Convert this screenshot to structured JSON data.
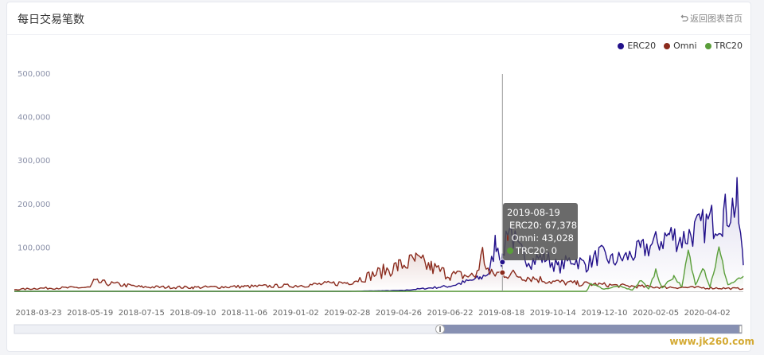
{
  "header": {
    "title": "每日交易笔数",
    "back_label": "返回图表首页"
  },
  "legend": [
    {
      "name": "ERC20",
      "color": "#22108a"
    },
    {
      "name": "Omni",
      "color": "#8b2b1d"
    },
    {
      "name": "TRC20",
      "color": "#5a9e3a"
    }
  ],
  "tooltip": {
    "date": "2019-08-19",
    "rows": [
      {
        "label": "ERC20: 67,378",
        "color": "#22108a"
      },
      {
        "label": "Omni: 43,028",
        "color": "#8b2b1d"
      },
      {
        "label": "TRC20: 0",
        "color": "#5a9e3a"
      }
    ]
  },
  "watermark": "www.jk260.com",
  "chart_data": {
    "type": "line",
    "title": "每日交易笔数",
    "yticks": [
      "100,000",
      "200,000",
      "300,000",
      "400,000",
      "500,000"
    ],
    "xtick_labels": [
      "2018-03-23",
      "2018-05-19",
      "2018-07-15",
      "2018-09-10",
      "2018-11-06",
      "2019-01-02",
      "2019-02-28",
      "2019-04-26",
      "2019-06-22",
      "2019-08-18",
      "2019-10-14",
      "2019-12-10",
      "2020-02-05",
      "2020-04-02"
    ],
    "ylim": [
      0,
      500000
    ],
    "x_start": "2018-02-24",
    "x_end": "2020-05-12",
    "legend_position": "top-right",
    "crosshair_date": "2019-08-19",
    "series": [
      {
        "name": "ERC20",
        "color": "#22108a",
        "points": [
          [
            "2018-02-24",
            0
          ],
          [
            "2019-03-01",
            0
          ],
          [
            "2019-05-01",
            2000
          ],
          [
            "2019-06-01",
            8000
          ],
          [
            "2019-06-22",
            12000
          ],
          [
            "2019-07-10",
            22000
          ],
          [
            "2019-07-25",
            30000
          ],
          [
            "2019-08-05",
            45000
          ],
          [
            "2019-08-12",
            120000
          ],
          [
            "2019-08-19",
            67378
          ],
          [
            "2019-08-25",
            160000
          ],
          [
            "2019-09-05",
            95000
          ],
          [
            "2019-09-20",
            70000
          ],
          [
            "2019-10-05",
            80000
          ],
          [
            "2019-10-20",
            55000
          ],
          [
            "2019-11-05",
            75000
          ],
          [
            "2019-11-20",
            60000
          ],
          [
            "2019-12-05",
            85000
          ],
          [
            "2019-12-20",
            70000
          ],
          [
            "2020-01-05",
            80000
          ],
          [
            "2020-01-20",
            95000
          ],
          [
            "2020-02-05",
            110000
          ],
          [
            "2020-02-20",
            130000
          ],
          [
            "2020-03-05",
            120000
          ],
          [
            "2020-03-20",
            140000
          ],
          [
            "2020-04-05",
            160000
          ],
          [
            "2020-04-20",
            175000
          ],
          [
            "2020-05-05",
            205000
          ],
          [
            "2020-05-12",
            60000
          ]
        ]
      },
      {
        "name": "Omni",
        "color": "#8b2b1d",
        "points": [
          [
            "2018-02-24",
            4000
          ],
          [
            "2018-03-23",
            7000
          ],
          [
            "2018-05-19",
            9000
          ],
          [
            "2018-05-23",
            22000
          ],
          [
            "2018-07-15",
            10000
          ],
          [
            "2018-09-10",
            9000
          ],
          [
            "2018-11-06",
            11000
          ],
          [
            "2019-01-02",
            13000
          ],
          [
            "2019-02-28",
            20000
          ],
          [
            "2019-03-28",
            38000
          ],
          [
            "2019-04-26",
            58000
          ],
          [
            "2019-05-15",
            70000
          ],
          [
            "2019-06-01",
            55000
          ],
          [
            "2019-06-22",
            38000
          ],
          [
            "2019-07-20",
            35000
          ],
          [
            "2019-07-28",
            85000
          ],
          [
            "2019-08-05",
            38000
          ],
          [
            "2019-08-19",
            43028
          ],
          [
            "2019-09-10",
            35000
          ],
          [
            "2019-10-14",
            22000
          ],
          [
            "2019-11-10",
            18000
          ],
          [
            "2019-12-10",
            15000
          ],
          [
            "2020-01-05",
            12000
          ],
          [
            "2020-02-05",
            10000
          ],
          [
            "2020-03-05",
            9000
          ],
          [
            "2020-04-02",
            8000
          ],
          [
            "2020-05-12",
            6000
          ]
        ]
      },
      {
        "name": "TRC20",
        "color": "#5a9e3a",
        "points": [
          [
            "2018-02-24",
            0
          ],
          [
            "2019-11-20",
            0
          ],
          [
            "2019-11-25",
            18000
          ],
          [
            "2019-12-10",
            5000
          ],
          [
            "2019-12-25",
            12000
          ],
          [
            "2020-01-10",
            3000
          ],
          [
            "2020-01-20",
            25000
          ],
          [
            "2020-01-28",
            6000
          ],
          [
            "2020-02-05",
            45000
          ],
          [
            "2020-02-12",
            8000
          ],
          [
            "2020-02-25",
            35000
          ],
          [
            "2020-03-05",
            10000
          ],
          [
            "2020-03-12",
            90000
          ],
          [
            "2020-03-20",
            15000
          ],
          [
            "2020-03-28",
            60000
          ],
          [
            "2020-04-05",
            10000
          ],
          [
            "2020-04-15",
            95000
          ],
          [
            "2020-04-25",
            15000
          ],
          [
            "2020-05-05",
            25000
          ],
          [
            "2020-05-12",
            35000
          ]
        ]
      }
    ]
  }
}
